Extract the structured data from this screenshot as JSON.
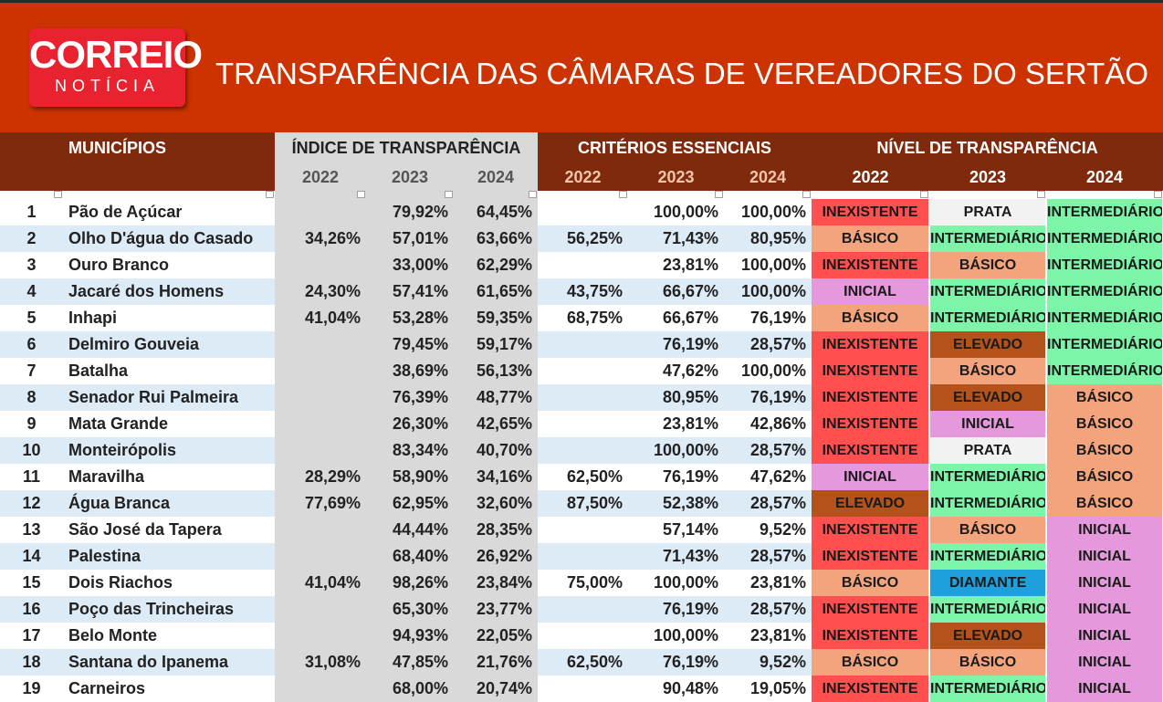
{
  "header": {
    "logo_top": "CORREIO",
    "logo_bottom": "NOTÍCIA",
    "title": "TRANSPARÊNCIA DAS CÂMARAS DE VEREADORES DO SERTÃO"
  },
  "columns": {
    "municipios": "MUNICÍPIOS",
    "indice": "ÍNDICE DE TRANSPARÊNCIA",
    "criterios": "CRITÉRIOS ESSENCIAIS",
    "nivel": "NÍVEL DE TRANSPARÊNCIA",
    "years": [
      "2022",
      "2023",
      "2024"
    ]
  },
  "colors": {
    "INEXISTENTE": "#ff4f4f",
    "BÁSICO": "#f4a47c",
    "INICIAL": "#e598dc",
    "INTERMEDIÁRIO": "#7cf5a8",
    "ELEVADO": "#b3521b",
    "PRATA": "#f2f2f2",
    "DIAMANTE": "#1ea0dc"
  },
  "rows": [
    {
      "n": "1",
      "m": "Pão de Açúcar",
      "i": [
        "",
        "79,92%",
        "64,45%"
      ],
      "c": [
        "",
        "100,00%",
        "100,00%"
      ],
      "l": [
        "INEXISTENTE",
        "PRATA",
        "INTERMEDIÁRIO"
      ]
    },
    {
      "n": "2",
      "m": "Olho D'água do Casado",
      "i": [
        "34,26%",
        "57,01%",
        "63,66%"
      ],
      "c": [
        "56,25%",
        "71,43%",
        "80,95%"
      ],
      "l": [
        "BÁSICO",
        "INTERMEDIÁRIO",
        "INTERMEDIÁRIO"
      ]
    },
    {
      "n": "3",
      "m": "Ouro Branco",
      "i": [
        "",
        "33,00%",
        "62,29%"
      ],
      "c": [
        "",
        "23,81%",
        "100,00%"
      ],
      "l": [
        "INEXISTENTE",
        "BÁSICO",
        "INTERMEDIÁRIO"
      ]
    },
    {
      "n": "4",
      "m": "Jacaré dos Homens",
      "i": [
        "24,30%",
        "57,41%",
        "61,65%"
      ],
      "c": [
        "43,75%",
        "66,67%",
        "100,00%"
      ],
      "l": [
        "INICIAL",
        "INTERMEDIÁRIO",
        "INTERMEDIÁRIO"
      ]
    },
    {
      "n": "5",
      "m": "Inhapi",
      "i": [
        "41,04%",
        "53,28%",
        "59,35%"
      ],
      "c": [
        "68,75%",
        "66,67%",
        "76,19%"
      ],
      "l": [
        "BÁSICO",
        "INTERMEDIÁRIO",
        "INTERMEDIÁRIO"
      ]
    },
    {
      "n": "6",
      "m": "Delmiro Gouveia",
      "i": [
        "",
        "79,45%",
        "59,17%"
      ],
      "c": [
        "",
        "76,19%",
        "28,57%"
      ],
      "l": [
        "INEXISTENTE",
        "ELEVADO",
        "INTERMEDIÁRIO"
      ]
    },
    {
      "n": "7",
      "m": "Batalha",
      "i": [
        "",
        "38,69%",
        "56,13%"
      ],
      "c": [
        "",
        "47,62%",
        "100,00%"
      ],
      "l": [
        "INEXISTENTE",
        "BÁSICO",
        "INTERMEDIÁRIO"
      ]
    },
    {
      "n": "8",
      "m": "Senador Rui Palmeira",
      "i": [
        "",
        "76,39%",
        "48,77%"
      ],
      "c": [
        "",
        "80,95%",
        "76,19%"
      ],
      "l": [
        "INEXISTENTE",
        "ELEVADO",
        "BÁSICO"
      ]
    },
    {
      "n": "9",
      "m": "Mata Grande",
      "i": [
        "",
        "26,30%",
        "42,65%"
      ],
      "c": [
        "",
        "23,81%",
        "42,86%"
      ],
      "l": [
        "INEXISTENTE",
        "INICIAL",
        "BÁSICO"
      ]
    },
    {
      "n": "10",
      "m": "Monteirópolis",
      "i": [
        "",
        "83,34%",
        "40,70%"
      ],
      "c": [
        "",
        "100,00%",
        "28,57%"
      ],
      "l": [
        "INEXISTENTE",
        "PRATA",
        "BÁSICO"
      ]
    },
    {
      "n": "11",
      "m": "Maravilha",
      "i": [
        "28,29%",
        "58,90%",
        "34,16%"
      ],
      "c": [
        "62,50%",
        "76,19%",
        "47,62%"
      ],
      "l": [
        "INICIAL",
        "INTERMEDIÁRIO",
        "BÁSICO"
      ]
    },
    {
      "n": "12",
      "m": "Água Branca",
      "i": [
        "77,69%",
        "62,95%",
        "32,60%"
      ],
      "c": [
        "87,50%",
        "52,38%",
        "28,57%"
      ],
      "l": [
        "ELEVADO",
        "INTERMEDIÁRIO",
        "BÁSICO"
      ]
    },
    {
      "n": "13",
      "m": "São José da Tapera",
      "i": [
        "",
        "44,44%",
        "28,35%"
      ],
      "c": [
        "",
        "57,14%",
        "9,52%"
      ],
      "l": [
        "INEXISTENTE",
        "BÁSICO",
        "INICIAL"
      ]
    },
    {
      "n": "14",
      "m": "Palestina",
      "i": [
        "",
        "68,40%",
        "26,92%"
      ],
      "c": [
        "",
        "71,43%",
        "28,57%"
      ],
      "l": [
        "INEXISTENTE",
        "INTERMEDIÁRIO",
        "INICIAL"
      ]
    },
    {
      "n": "15",
      "m": "Dois Riachos",
      "i": [
        "41,04%",
        "98,26%",
        "23,84%"
      ],
      "c": [
        "75,00%",
        "100,00%",
        "23,81%"
      ],
      "l": [
        "BÁSICO",
        "DIAMANTE",
        "INICIAL"
      ]
    },
    {
      "n": "16",
      "m": "Poço das Trincheiras",
      "i": [
        "",
        "65,30%",
        "23,77%"
      ],
      "c": [
        "",
        "76,19%",
        "28,57%"
      ],
      "l": [
        "INEXISTENTE",
        "INTERMEDIÁRIO",
        "INICIAL"
      ]
    },
    {
      "n": "17",
      "m": "Belo Monte",
      "i": [
        "",
        "94,93%",
        "22,05%"
      ],
      "c": [
        "",
        "100,00%",
        "23,81%"
      ],
      "l": [
        "INEXISTENTE",
        "ELEVADO",
        "INICIAL"
      ]
    },
    {
      "n": "18",
      "m": "Santana do Ipanema",
      "i": [
        "31,08%",
        "47,85%",
        "21,76%"
      ],
      "c": [
        "62,50%",
        "76,19%",
        "9,52%"
      ],
      "l": [
        "BÁSICO",
        "BÁSICO",
        "INICIAL"
      ]
    },
    {
      "n": "19",
      "m": "Carneiros",
      "i": [
        "",
        "68,00%",
        "20,74%"
      ],
      "c": [
        "",
        "90,48%",
        "19,05%"
      ],
      "l": [
        "INEXISTENTE",
        "INTERMEDIÁRIO",
        "INICIAL"
      ]
    }
  ]
}
